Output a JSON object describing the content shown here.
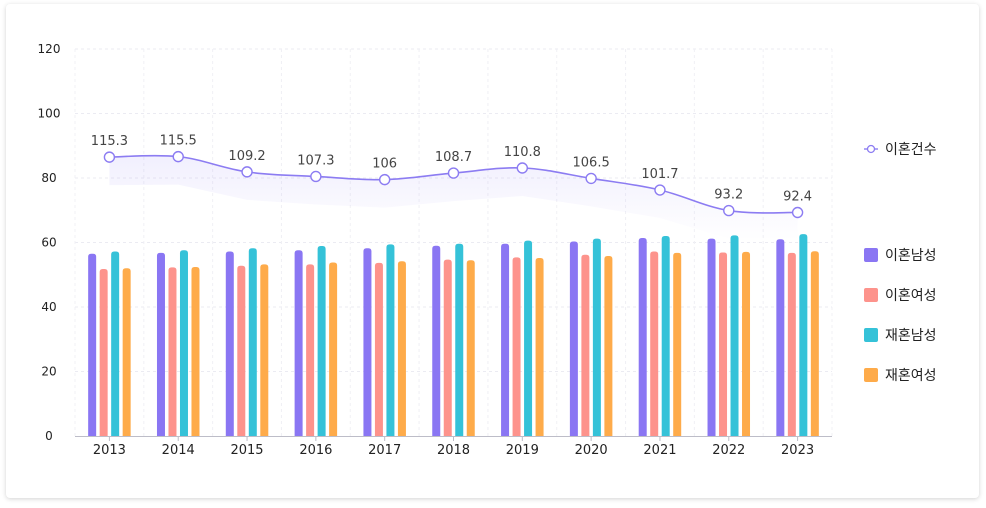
{
  "chart_data": {
    "type": "bar+line",
    "categories": [
      "2013",
      "2014",
      "2015",
      "2016",
      "2017",
      "2018",
      "2019",
      "2020",
      "2021",
      "2022",
      "2023"
    ],
    "y_left": {
      "min": 0,
      "max": 120,
      "ticks": [
        0,
        20,
        40,
        60,
        80,
        100,
        120
      ]
    },
    "line_axis_range": [
      0,
      160
    ],
    "series": [
      {
        "name": "이혼남성",
        "type": "bar",
        "color": "#8a76f3",
        "values": [
          56.5,
          56.8,
          57.2,
          57.6,
          58.2,
          59.0,
          59.6,
          60.3,
          61.4,
          61.2,
          61.0
        ]
      },
      {
        "name": "이혼여성",
        "type": "bar",
        "color": "#fd938c",
        "values": [
          51.8,
          52.3,
          52.8,
          53.2,
          53.7,
          54.7,
          55.4,
          56.2,
          57.2,
          56.9,
          56.8
        ]
      },
      {
        "name": "재혼남성",
        "type": "bar",
        "color": "#35c2d8",
        "values": [
          57.2,
          57.6,
          58.2,
          58.9,
          59.4,
          59.6,
          60.6,
          61.2,
          62.0,
          62.2,
          62.6
        ]
      },
      {
        "name": "재혼여성",
        "type": "bar",
        "color": "#feab4a",
        "values": [
          52.0,
          52.4,
          53.2,
          53.8,
          54.2,
          54.5,
          55.2,
          55.8,
          56.8,
          57.1,
          57.3
        ]
      },
      {
        "name": "이혼건수",
        "type": "line",
        "color": "#8c7cf2",
        "values": [
          115.3,
          115.5,
          109.2,
          107.3,
          106,
          108.7,
          110.8,
          106.5,
          101.7,
          93.2,
          92.4
        ],
        "labels": [
          "115.3",
          "115.5",
          "109.2",
          "107.3",
          "106",
          "108.7",
          "110.8",
          "106.5",
          "101.7",
          "93.2",
          "92.4"
        ]
      }
    ],
    "legend": [
      "이혼건수",
      "이혼남성",
      "이혼여성",
      "재혼남성",
      "재혼여성"
    ],
    "grid": true,
    "legend_position": "right"
  }
}
